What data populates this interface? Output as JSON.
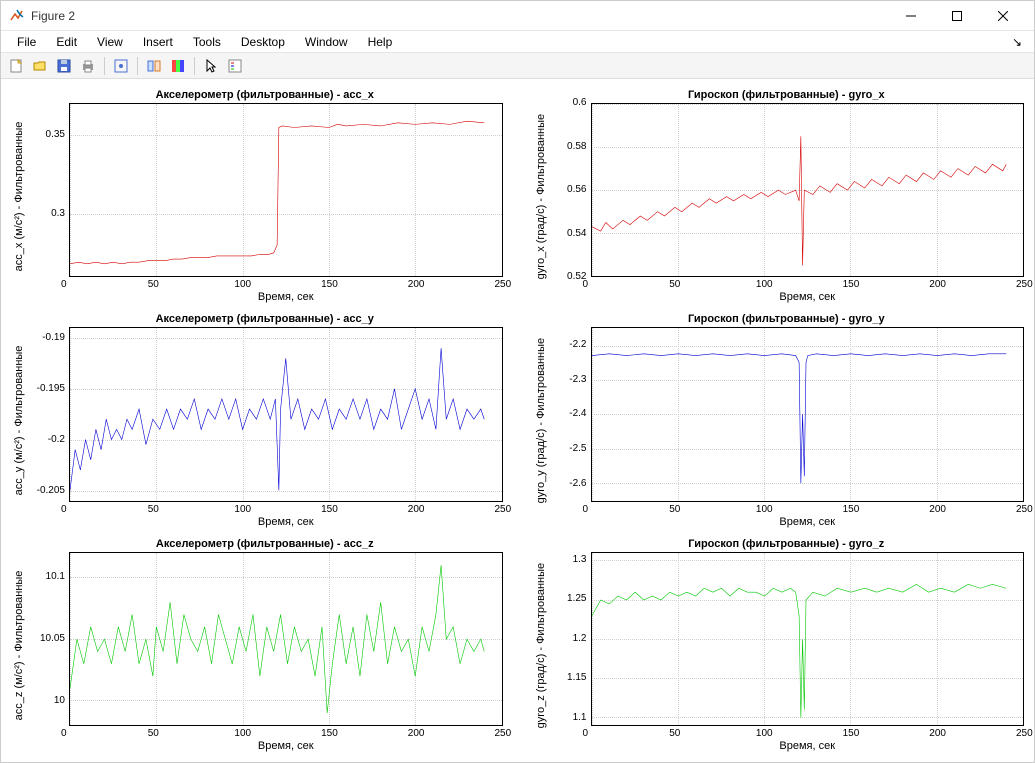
{
  "window": {
    "title": "Figure 2"
  },
  "menu": {
    "items": [
      "File",
      "Edit",
      "View",
      "Insert",
      "Tools",
      "Desktop",
      "Window",
      "Help"
    ]
  },
  "toolbar": {
    "groups": [
      [
        "new-figure",
        "open",
        "save",
        "print"
      ],
      [
        "data-cursor"
      ],
      [
        "link",
        "colorbar"
      ],
      [
        "pointer",
        "hide-tools"
      ]
    ]
  },
  "xlabel": "Время, сек",
  "xlim": [
    0,
    250
  ],
  "xticks": [
    0,
    50,
    100,
    150,
    200,
    250
  ],
  "plots": [
    {
      "id": "acc_x",
      "title": "Акселерометр (фильтрованные) - acc_x",
      "ylabel": "acc_x (м/с²) - Фильтрованные",
      "ylim": [
        0.26,
        0.37
      ],
      "yticks": [
        0.35,
        0.3
      ],
      "color": "#d60000",
      "data": [
        [
          0,
          0.268
        ],
        [
          5,
          0.269
        ],
        [
          10,
          0.268
        ],
        [
          15,
          0.269
        ],
        [
          20,
          0.268
        ],
        [
          25,
          0.269
        ],
        [
          30,
          0.268
        ],
        [
          35,
          0.269
        ],
        [
          40,
          0.269
        ],
        [
          45,
          0.27
        ],
        [
          50,
          0.27
        ],
        [
          55,
          0.27
        ],
        [
          60,
          0.271
        ],
        [
          65,
          0.271
        ],
        [
          70,
          0.272
        ],
        [
          75,
          0.272
        ],
        [
          80,
          0.272
        ],
        [
          85,
          0.273
        ],
        [
          90,
          0.273
        ],
        [
          95,
          0.273
        ],
        [
          100,
          0.273
        ],
        [
          105,
          0.273
        ],
        [
          110,
          0.274
        ],
        [
          115,
          0.274
        ],
        [
          118,
          0.275
        ],
        [
          120,
          0.28
        ],
        [
          121,
          0.355
        ],
        [
          123,
          0.356
        ],
        [
          130,
          0.355
        ],
        [
          140,
          0.356
        ],
        [
          150,
          0.355
        ],
        [
          155,
          0.357
        ],
        [
          160,
          0.356
        ],
        [
          170,
          0.357
        ],
        [
          180,
          0.356
        ],
        [
          190,
          0.358
        ],
        [
          200,
          0.357
        ],
        [
          210,
          0.358
        ],
        [
          220,
          0.357
        ],
        [
          230,
          0.359
        ],
        [
          240,
          0.358
        ]
      ]
    },
    {
      "id": "gyro_x",
      "title": "Гироскоп (фильтрованные) - gyro_x",
      "ylabel": "gyro_x (град/с) - Фильтрованные",
      "ylim": [
        0.52,
        0.6
      ],
      "yticks": [
        0.6,
        0.58,
        0.56,
        0.54,
        0.52
      ],
      "color": "#d60000",
      "data": [
        [
          0,
          0.543
        ],
        [
          5,
          0.541
        ],
        [
          8,
          0.545
        ],
        [
          12,
          0.542
        ],
        [
          18,
          0.546
        ],
        [
          22,
          0.544
        ],
        [
          28,
          0.548
        ],
        [
          32,
          0.546
        ],
        [
          38,
          0.55
        ],
        [
          42,
          0.548
        ],
        [
          48,
          0.552
        ],
        [
          52,
          0.55
        ],
        [
          58,
          0.554
        ],
        [
          62,
          0.552
        ],
        [
          68,
          0.556
        ],
        [
          72,
          0.554
        ],
        [
          78,
          0.557
        ],
        [
          82,
          0.555
        ],
        [
          88,
          0.558
        ],
        [
          92,
          0.556
        ],
        [
          98,
          0.559
        ],
        [
          102,
          0.557
        ],
        [
          108,
          0.56
        ],
        [
          112,
          0.558
        ],
        [
          118,
          0.56
        ],
        [
          120,
          0.555
        ],
        [
          121,
          0.585
        ],
        [
          122,
          0.525
        ],
        [
          123,
          0.56
        ],
        [
          128,
          0.558
        ],
        [
          132,
          0.562
        ],
        [
          138,
          0.559
        ],
        [
          142,
          0.563
        ],
        [
          148,
          0.56
        ],
        [
          152,
          0.564
        ],
        [
          158,
          0.561
        ],
        [
          162,
          0.565
        ],
        [
          168,
          0.562
        ],
        [
          172,
          0.566
        ],
        [
          178,
          0.563
        ],
        [
          182,
          0.567
        ],
        [
          188,
          0.564
        ],
        [
          192,
          0.568
        ],
        [
          198,
          0.565
        ],
        [
          202,
          0.569
        ],
        [
          208,
          0.566
        ],
        [
          212,
          0.57
        ],
        [
          218,
          0.567
        ],
        [
          222,
          0.571
        ],
        [
          228,
          0.568
        ],
        [
          232,
          0.572
        ],
        [
          238,
          0.569
        ],
        [
          240,
          0.572
        ]
      ]
    },
    {
      "id": "acc_y",
      "title": "Акселерометр (фильтрованные) - acc_y",
      "ylabel": "acc_y (м/с²) - Фильтрованные",
      "ylim": [
        -0.206,
        -0.189
      ],
      "yticks": [
        -0.19,
        -0.195,
        -0.2,
        -0.205
      ],
      "color": "#0000d6",
      "data": [
        [
          0,
          -0.205
        ],
        [
          3,
          -0.201
        ],
        [
          6,
          -0.203
        ],
        [
          9,
          -0.2
        ],
        [
          12,
          -0.202
        ],
        [
          15,
          -0.199
        ],
        [
          18,
          -0.201
        ],
        [
          21,
          -0.198
        ],
        [
          24,
          -0.2
        ],
        [
          27,
          -0.199
        ],
        [
          30,
          -0.2
        ],
        [
          33,
          -0.198
        ],
        [
          36,
          -0.199
        ],
        [
          40,
          -0.197
        ],
        [
          44,
          -0.2005
        ],
        [
          48,
          -0.198
        ],
        [
          52,
          -0.199
        ],
        [
          56,
          -0.197
        ],
        [
          60,
          -0.199
        ],
        [
          64,
          -0.197
        ],
        [
          68,
          -0.198
        ],
        [
          72,
          -0.196
        ],
        [
          76,
          -0.199
        ],
        [
          80,
          -0.197
        ],
        [
          84,
          -0.198
        ],
        [
          88,
          -0.196
        ],
        [
          92,
          -0.198
        ],
        [
          96,
          -0.196
        ],
        [
          100,
          -0.199
        ],
        [
          104,
          -0.197
        ],
        [
          108,
          -0.198
        ],
        [
          112,
          -0.196
        ],
        [
          116,
          -0.198
        ],
        [
          119,
          -0.196
        ],
        [
          121,
          -0.205
        ],
        [
          122,
          -0.197
        ],
        [
          125,
          -0.192
        ],
        [
          128,
          -0.198
        ],
        [
          132,
          -0.196
        ],
        [
          136,
          -0.199
        ],
        [
          140,
          -0.197
        ],
        [
          144,
          -0.198
        ],
        [
          148,
          -0.196
        ],
        [
          152,
          -0.199
        ],
        [
          156,
          -0.197
        ],
        [
          160,
          -0.198
        ],
        [
          164,
          -0.196
        ],
        [
          168,
          -0.198
        ],
        [
          172,
          -0.196
        ],
        [
          176,
          -0.199
        ],
        [
          180,
          -0.197
        ],
        [
          184,
          -0.198
        ],
        [
          188,
          -0.195
        ],
        [
          192,
          -0.199
        ],
        [
          196,
          -0.197
        ],
        [
          200,
          -0.195
        ],
        [
          204,
          -0.198
        ],
        [
          208,
          -0.196
        ],
        [
          212,
          -0.199
        ],
        [
          215,
          -0.191
        ],
        [
          218,
          -0.198
        ],
        [
          222,
          -0.196
        ],
        [
          226,
          -0.199
        ],
        [
          230,
          -0.197
        ],
        [
          234,
          -0.198
        ],
        [
          238,
          -0.197
        ],
        [
          240,
          -0.198
        ]
      ]
    },
    {
      "id": "gyro_y",
      "title": "Гироскоп (фильтрованные) - gyro_y",
      "ylabel": "gyro_y (град/с) - Фильтрованные",
      "ylim": [
        -2.65,
        -2.15
      ],
      "yticks": [
        -2.2,
        -2.3,
        -2.4,
        -2.5,
        -2.6
      ],
      "color": "#0000d6",
      "data": [
        [
          0,
          -2.23
        ],
        [
          10,
          -2.225
        ],
        [
          20,
          -2.23
        ],
        [
          30,
          -2.225
        ],
        [
          40,
          -2.23
        ],
        [
          50,
          -2.225
        ],
        [
          60,
          -2.23
        ],
        [
          70,
          -2.225
        ],
        [
          80,
          -2.23
        ],
        [
          90,
          -2.225
        ],
        [
          100,
          -2.23
        ],
        [
          110,
          -2.225
        ],
        [
          118,
          -2.23
        ],
        [
          120,
          -2.25
        ],
        [
          121,
          -2.6
        ],
        [
          122,
          -2.4
        ],
        [
          123,
          -2.58
        ],
        [
          124,
          -2.25
        ],
        [
          125,
          -2.23
        ],
        [
          130,
          -2.225
        ],
        [
          140,
          -2.23
        ],
        [
          150,
          -2.225
        ],
        [
          160,
          -2.23
        ],
        [
          170,
          -2.225
        ],
        [
          180,
          -2.23
        ],
        [
          190,
          -2.225
        ],
        [
          200,
          -2.23
        ],
        [
          210,
          -2.225
        ],
        [
          220,
          -2.23
        ],
        [
          230,
          -2.225
        ],
        [
          240,
          -2.225
        ]
      ]
    },
    {
      "id": "acc_z",
      "title": "Акселерометр (фильтрованные) - acc_z",
      "ylabel": "acc_z (м/с²) - Фильтрованные",
      "ylim": [
        9.98,
        10.12
      ],
      "yticks": [
        10.1,
        10.05,
        10
      ],
      "color": "#00c800",
      "data": [
        [
          0,
          10.01
        ],
        [
          4,
          10.05
        ],
        [
          8,
          10.03
        ],
        [
          12,
          10.06
        ],
        [
          16,
          10.04
        ],
        [
          20,
          10.05
        ],
        [
          24,
          10.03
        ],
        [
          28,
          10.06
        ],
        [
          32,
          10.04
        ],
        [
          36,
          10.07
        ],
        [
          40,
          10.03
        ],
        [
          44,
          10.05
        ],
        [
          48,
          10.02
        ],
        [
          50,
          10.06
        ],
        [
          54,
          10.04
        ],
        [
          58,
          10.08
        ],
        [
          62,
          10.03
        ],
        [
          66,
          10.07
        ],
        [
          70,
          10.05
        ],
        [
          74,
          10.04
        ],
        [
          78,
          10.06
        ],
        [
          82,
          10.03
        ],
        [
          86,
          10.07
        ],
        [
          90,
          10.05
        ],
        [
          94,
          10.03
        ],
        [
          98,
          10.06
        ],
        [
          102,
          10.04
        ],
        [
          106,
          10.07
        ],
        [
          110,
          10.02
        ],
        [
          114,
          10.06
        ],
        [
          118,
          10.04
        ],
        [
          122,
          10.07
        ],
        [
          126,
          10.03
        ],
        [
          130,
          10.06
        ],
        [
          134,
          10.04
        ],
        [
          138,
          10.05
        ],
        [
          142,
          10.02
        ],
        [
          146,
          10.06
        ],
        [
          149,
          9.99
        ],
        [
          152,
          10.03
        ],
        [
          156,
          10.07
        ],
        [
          160,
          10.03
        ],
        [
          164,
          10.06
        ],
        [
          168,
          10.02
        ],
        [
          172,
          10.07
        ],
        [
          176,
          10.04
        ],
        [
          180,
          10.08
        ],
        [
          184,
          10.03
        ],
        [
          188,
          10.06
        ],
        [
          192,
          10.04
        ],
        [
          196,
          10.05
        ],
        [
          200,
          10.02
        ],
        [
          204,
          10.06
        ],
        [
          208,
          10.04
        ],
        [
          212,
          10.07
        ],
        [
          215,
          10.11
        ],
        [
          218,
          10.05
        ],
        [
          222,
          10.06
        ],
        [
          226,
          10.03
        ],
        [
          230,
          10.05
        ],
        [
          234,
          10.04
        ],
        [
          238,
          10.05
        ],
        [
          240,
          10.04
        ]
      ]
    },
    {
      "id": "gyro_z",
      "title": "Гироскоп (фильтрованные) - gyro_z",
      "ylabel": "gyro_z (град/с) - Фильтрованные",
      "ylim": [
        1.09,
        1.31
      ],
      "yticks": [
        1.3,
        1.25,
        1.2,
        1.15,
        1.1
      ],
      "color": "#00c800",
      "data": [
        [
          0,
          1.23
        ],
        [
          5,
          1.25
        ],
        [
          10,
          1.245
        ],
        [
          15,
          1.255
        ],
        [
          20,
          1.25
        ],
        [
          25,
          1.26
        ],
        [
          30,
          1.25
        ],
        [
          35,
          1.255
        ],
        [
          40,
          1.25
        ],
        [
          45,
          1.26
        ],
        [
          50,
          1.255
        ],
        [
          55,
          1.26
        ],
        [
          60,
          1.255
        ],
        [
          65,
          1.265
        ],
        [
          70,
          1.26
        ],
        [
          75,
          1.265
        ],
        [
          80,
          1.255
        ],
        [
          85,
          1.265
        ],
        [
          90,
          1.26
        ],
        [
          95,
          1.26
        ],
        [
          100,
          1.255
        ],
        [
          105,
          1.265
        ],
        [
          110,
          1.26
        ],
        [
          115,
          1.265
        ],
        [
          118,
          1.26
        ],
        [
          120,
          1.23
        ],
        [
          121,
          1.1
        ],
        [
          122,
          1.2
        ],
        [
          123,
          1.11
        ],
        [
          124,
          1.25
        ],
        [
          128,
          1.26
        ],
        [
          135,
          1.255
        ],
        [
          142,
          1.265
        ],
        [
          150,
          1.26
        ],
        [
          158,
          1.265
        ],
        [
          165,
          1.26
        ],
        [
          172,
          1.265
        ],
        [
          180,
          1.26
        ],
        [
          188,
          1.27
        ],
        [
          195,
          1.26
        ],
        [
          202,
          1.265
        ],
        [
          210,
          1.26
        ],
        [
          218,
          1.27
        ],
        [
          225,
          1.265
        ],
        [
          232,
          1.27
        ],
        [
          240,
          1.265
        ]
      ]
    }
  ]
}
